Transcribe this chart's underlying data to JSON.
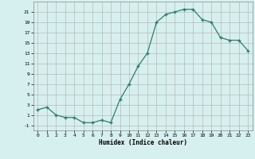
{
  "x": [
    0,
    1,
    2,
    3,
    4,
    5,
    6,
    7,
    8,
    9,
    10,
    11,
    12,
    13,
    14,
    15,
    16,
    17,
    18,
    19,
    20,
    21,
    22,
    23
  ],
  "y": [
    2,
    2.5,
    1,
    0.5,
    0.5,
    -0.5,
    -0.5,
    0,
    -0.5,
    4,
    7,
    10.5,
    13,
    19,
    20.5,
    21,
    21.5,
    21.5,
    19.5,
    19,
    16,
    15.5,
    15.5,
    13.5
  ],
  "xlabel": "Humidex (Indice chaleur)",
  "ylabel": "",
  "xlim": [
    -0.5,
    23.5
  ],
  "ylim": [
    -2,
    23
  ],
  "yticks": [
    -1,
    1,
    3,
    5,
    7,
    9,
    11,
    13,
    15,
    17,
    19,
    21
  ],
  "xticks": [
    0,
    1,
    2,
    3,
    4,
    5,
    6,
    7,
    8,
    9,
    10,
    11,
    12,
    13,
    14,
    15,
    16,
    17,
    18,
    19,
    20,
    21,
    22,
    23
  ],
  "line_color": "#2e7d6e",
  "bg_color": "#d6f0ef",
  "grid_color": "#b8b8b8",
  "marker": "+",
  "marker_size": 3,
  "linewidth": 0.9
}
